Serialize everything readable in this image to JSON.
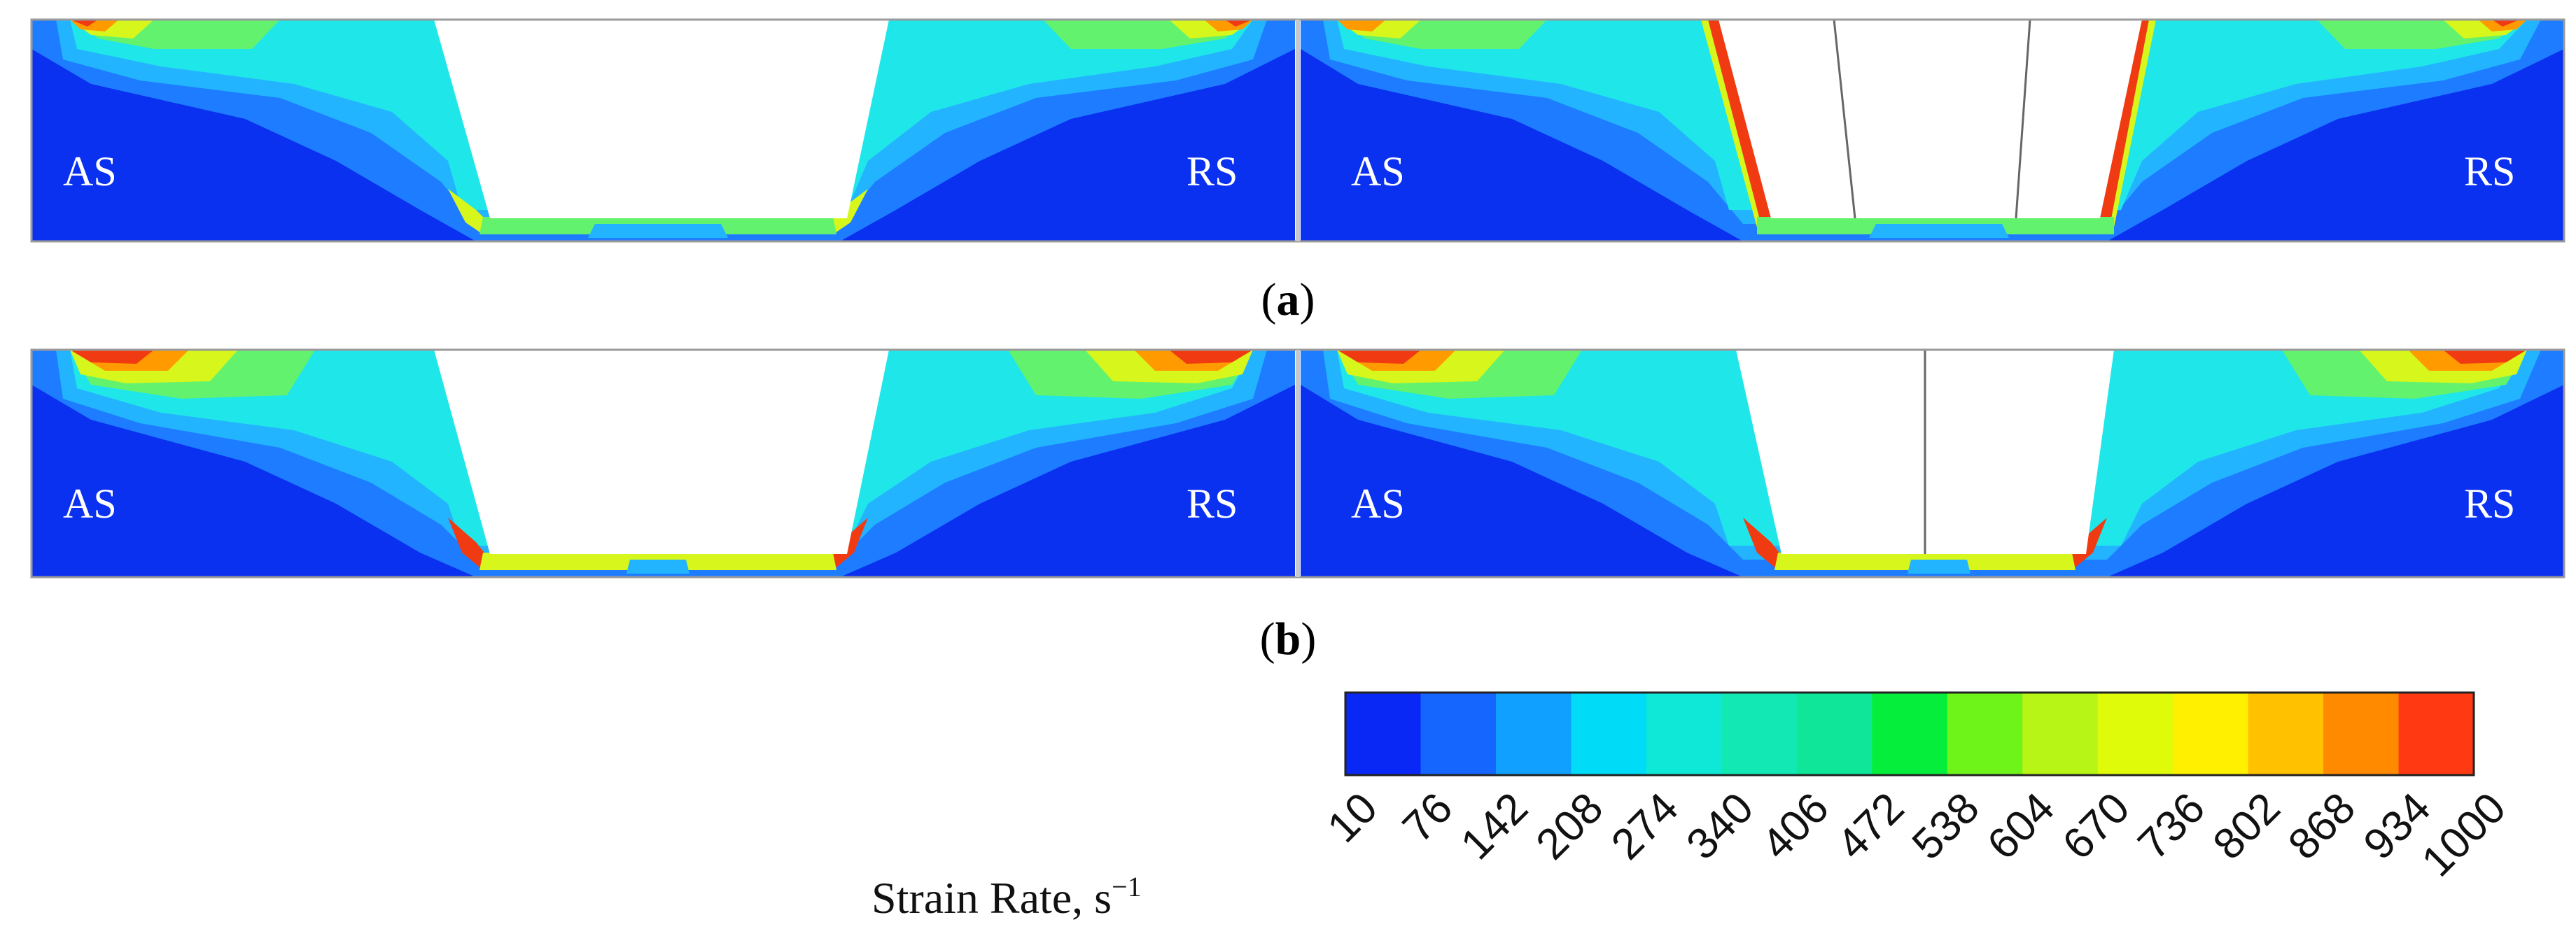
{
  "captions": {
    "a": "a",
    "b": "b"
  },
  "side_labels": {
    "advancing": "AS",
    "retreating": "RS"
  },
  "legend": {
    "title": "Strain Rate, s",
    "title_exponent": "−1",
    "ticks": [
      "10",
      "76",
      "142",
      "208",
      "274",
      "340",
      "406",
      "472",
      "538",
      "604",
      "670",
      "736",
      "802",
      "868",
      "934",
      "1000"
    ],
    "colors": [
      "#0a28f5",
      "#1565ff",
      "#10a0ff",
      "#00dcf7",
      "#0fe8d6",
      "#12e8b4",
      "#10e69a",
      "#06ee3c",
      "#6ff41a",
      "#b6f516",
      "#dffb0a",
      "#fff000",
      "#ffc100",
      "#ff8a00",
      "#ff3a12"
    ]
  },
  "colormap": {
    "background": "#0a30f0",
    "c1": "#1d7cff",
    "c2": "#22b4ff",
    "c3": "#1fe6e9",
    "c4": "#63f26e",
    "c5": "#d7f71c",
    "c6": "#ff9a00",
    "c7": "#f03a12"
  }
}
